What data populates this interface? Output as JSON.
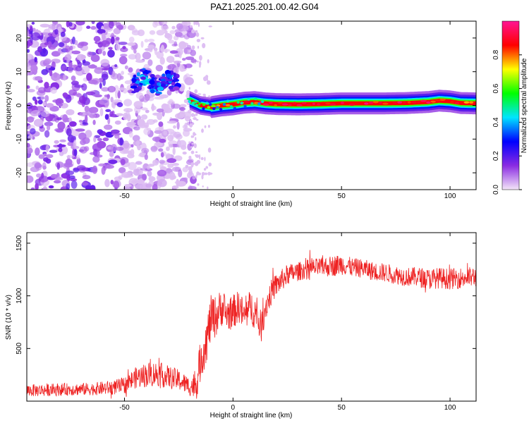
{
  "title": "PAZ1.2025.201.00.42.G04",
  "colors": {
    "snr_line": "#ee2222",
    "axes": "#000000"
  },
  "chart_data": [
    {
      "type": "heatmap",
      "xlabel": "Height of straight line (km)",
      "ylabel": "Frequency (Hz)",
      "xlim": [
        -95,
        112
      ],
      "ylim": [
        -25,
        25
      ],
      "xticks": [
        -50,
        0,
        50,
        100
      ],
      "yticks": [
        -20,
        -10,
        0,
        10,
        20
      ],
      "colorbar": {
        "label": "Normalized spectral amplitude",
        "range": [
          0.0,
          1.0
        ],
        "ticks": [
          0.0,
          0.2,
          0.4,
          0.6,
          0.8
        ],
        "colormap": "rainbow",
        "colors": [
          "#f4e6f8",
          "#8a2be2",
          "#0000ff",
          "#00e5ff",
          "#00ff00",
          "#ffff00",
          "#ff0000",
          "#ff1493"
        ]
      },
      "ridge": {
        "x": [
          -20,
          -15,
          -10,
          -5,
          0,
          5,
          10,
          15,
          20,
          30,
          40,
          50,
          60,
          70,
          80,
          90,
          95,
          100,
          105,
          112
        ],
        "frequency": [
          1.5,
          0,
          -0.5,
          0,
          0.3,
          0.8,
          1.0,
          0.6,
          0.4,
          0.3,
          0.4,
          0.6,
          0.6,
          0.6,
          0.7,
          1.0,
          1.4,
          1.2,
          0.7,
          0.6
        ],
        "amplitude": [
          0.5,
          0.6,
          0.7,
          0.8,
          0.85,
          0.9,
          0.9,
          0.92,
          0.95,
          0.95,
          0.95,
          0.95,
          0.95,
          0.95,
          0.95,
          0.92,
          0.9,
          0.9,
          0.88,
          0.85
        ]
      },
      "cluster": {
        "x": [
          -46,
          -40,
          -35,
          -30,
          -25
        ],
        "frequency": [
          6,
          9,
          5,
          8,
          6
        ],
        "amplitude": [
          0.3,
          0.45,
          0.35,
          0.4,
          0.3
        ]
      },
      "noise_region_x": [
        -95,
        -18
      ]
    },
    {
      "type": "line",
      "xlabel": "Height of straight line (km)",
      "ylabel": "SNR (10 * v/v)",
      "xlim": [
        -95,
        112
      ],
      "ylim": [
        0,
        1600
      ],
      "xticks": [
        -50,
        0,
        50,
        100
      ],
      "yticks": [
        500,
        1000,
        1500
      ],
      "series": [
        {
          "x": [
            -95,
            -80,
            -65,
            -55,
            -50,
            -45,
            -40,
            -35,
            -30,
            -25,
            -20,
            -17,
            -15,
            -12,
            -10,
            -8,
            -5,
            -3,
            0,
            3,
            5,
            8,
            10,
            13,
            15,
            18,
            20,
            25,
            30,
            35,
            40,
            45,
            50,
            55,
            60,
            65,
            70,
            75,
            80,
            85,
            90,
            95,
            100,
            105,
            112
          ],
          "values": [
            100,
            110,
            115,
            130,
            150,
            220,
            250,
            260,
            230,
            200,
            140,
            150,
            380,
            600,
            800,
            800,
            900,
            820,
            850,
            900,
            800,
            900,
            850,
            700,
            900,
            1050,
            1100,
            1200,
            1230,
            1260,
            1270,
            1280,
            1300,
            1270,
            1260,
            1230,
            1220,
            1200,
            1180,
            1180,
            1160,
            1170,
            1160,
            1170,
            1180
          ],
          "noise_amplitude": [
            60,
            60,
            60,
            70,
            80,
            100,
            120,
            120,
            110,
            100,
            90,
            150,
            200,
            220,
            220,
            200,
            180,
            170,
            160,
            160,
            160,
            160,
            170,
            150,
            140,
            120,
            110,
            100,
            90,
            90,
            90,
            100,
            100,
            90,
            90,
            90,
            90,
            90,
            90,
            95,
            100,
            100,
            100,
            100,
            100
          ]
        }
      ]
    }
  ]
}
